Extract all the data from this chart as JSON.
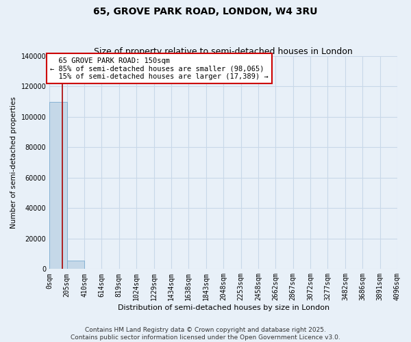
{
  "title": "65, GROVE PARK ROAD, LONDON, W4 3RU",
  "subtitle": "Size of property relative to semi-detached houses in London",
  "xlabel": "Distribution of semi-detached houses by size in London",
  "ylabel": "Number of semi-detached properties",
  "property_size": 150,
  "property_label": "65 GROVE PARK ROAD: 150sqm",
  "pct_smaller": 85,
  "pct_larger": 15,
  "n_smaller": 98065,
  "n_larger": 17389,
  "bin_edges": [
    0,
    205,
    410,
    614,
    819,
    1024,
    1229,
    1434,
    1638,
    1843,
    2048,
    2253,
    2458,
    2662,
    2867,
    3072,
    3277,
    3482,
    3686,
    3891,
    4096
  ],
  "bar_heights": [
    110000,
    5500,
    400,
    100,
    50,
    30,
    20,
    15,
    10,
    8,
    6,
    5,
    4,
    3,
    3,
    2,
    2,
    2,
    1,
    1
  ],
  "bar_color": "#C5D8E8",
  "bar_edge_color": "#7AABCF",
  "vline_color": "#AA0000",
  "vline_x": 150,
  "ylim": [
    0,
    140000
  ],
  "yticks": [
    0,
    20000,
    40000,
    60000,
    80000,
    100000,
    120000,
    140000
  ],
  "annotation_box_color": "#CC0000",
  "grid_color": "#C8D8E8",
  "background_color": "#E8F0F8",
  "footer": "Contains HM Land Registry data © Crown copyright and database right 2025.\nContains public sector information licensed under the Open Government Licence v3.0.",
  "title_fontsize": 10,
  "subtitle_fontsize": 9,
  "tick_fontsize": 7,
  "ylabel_fontsize": 7.5,
  "xlabel_fontsize": 8
}
